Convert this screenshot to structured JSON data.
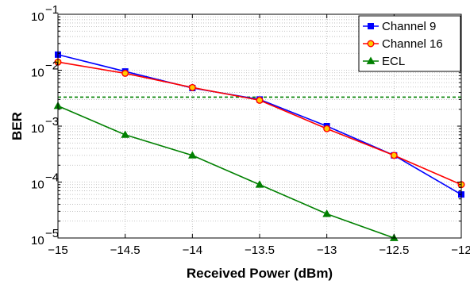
{
  "chart_data": {
    "type": "line",
    "xlabel": "Received Power (dBm)",
    "ylabel": "BER",
    "xlim": [
      -15,
      -12
    ],
    "ylim": [
      1e-05,
      0.1
    ],
    "yscale": "log",
    "grid": true,
    "legend_position": "top-right",
    "x_ticks": [
      {
        "value": -15,
        "label": "−15"
      },
      {
        "value": -14.5,
        "label": "−14.5"
      },
      {
        "value": -14,
        "label": "−14"
      },
      {
        "value": -13.5,
        "label": "−13.5"
      },
      {
        "value": -13,
        "label": "−13"
      },
      {
        "value": -12.5,
        "label": "−12.5"
      },
      {
        "value": -12,
        "label": "−12"
      }
    ],
    "y_ticks": [
      {
        "value": 1e-05,
        "base": "10",
        "exp": "−5"
      },
      {
        "value": 0.0001,
        "base": "10",
        "exp": "−4"
      },
      {
        "value": 0.001,
        "base": "10",
        "exp": "−3"
      },
      {
        "value": 0.01,
        "base": "10",
        "exp": "−2"
      },
      {
        "value": 0.1,
        "base": "10",
        "exp": "−1"
      }
    ],
    "series": [
      {
        "name": "Channel 9",
        "color": "#0000ff",
        "marker": "square",
        "marker_fill": "#0000ff",
        "points": [
          {
            "x": -15,
            "y": 0.019
          },
          {
            "x": -14.5,
            "y": 0.0095
          },
          {
            "x": -14,
            "y": 0.0048
          },
          {
            "x": -13.5,
            "y": 0.003
          },
          {
            "x": -13,
            "y": 0.001
          },
          {
            "x": -12.5,
            "y": 0.0003
          },
          {
            "x": -12,
            "y": 6e-05
          }
        ]
      },
      {
        "name": "Channel 16",
        "color": "#ff0000",
        "marker": "circle",
        "marker_fill": "#ffcc00",
        "points": [
          {
            "x": -15,
            "y": 0.014
          },
          {
            "x": -14.5,
            "y": 0.0088
          },
          {
            "x": -14,
            "y": 0.0049
          },
          {
            "x": -13.5,
            "y": 0.0029
          },
          {
            "x": -13,
            "y": 0.0009
          },
          {
            "x": -12.5,
            "y": 0.0003
          },
          {
            "x": -12,
            "y": 9e-05
          }
        ]
      },
      {
        "name": "ECL",
        "color": "#008000",
        "marker": "triangle",
        "marker_fill": "#008000",
        "points": [
          {
            "x": -15,
            "y": 0.0023
          },
          {
            "x": -14.5,
            "y": 0.0007
          },
          {
            "x": -14,
            "y": 0.0003
          },
          {
            "x": -13.5,
            "y": 9e-05
          },
          {
            "x": -13,
            "y": 2.7e-05
          },
          {
            "x": -12.5,
            "y": 1e-05
          }
        ]
      }
    ],
    "reference_lines": [
      {
        "orientation": "horizontal",
        "y": 0.0033,
        "color": "#008000",
        "style": "dashed"
      }
    ]
  }
}
